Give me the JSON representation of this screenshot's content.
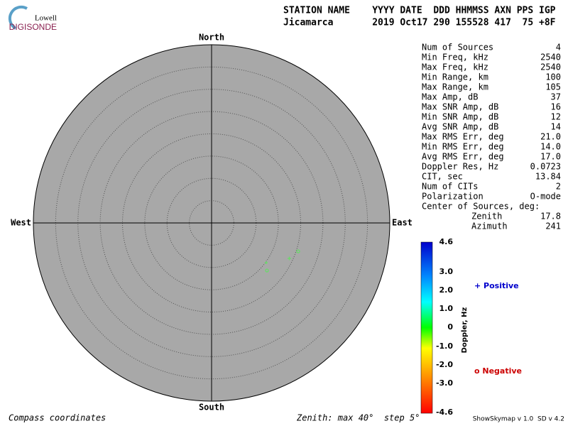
{
  "header": {
    "logo": [
      "Lowell",
      "DIGISONDE"
    ],
    "line1": "STATION NAME    YYYY DATE  DDD HHMMSS AXN PPS IGP",
    "line2": "Jicamarca       2019 Oct17 290 155528 417  75 +8F"
  },
  "compass": {
    "north": "North",
    "south": "South",
    "east": "East",
    "west": "West"
  },
  "stats": {
    "rows": [
      [
        "Num of Sources",
        "4"
      ],
      [
        "Min Freq, kHz",
        "2540"
      ],
      [
        "Max Freq, kHz",
        "2540"
      ],
      [
        "Min Range, km",
        "100"
      ],
      [
        "Max Range, km",
        "105"
      ],
      [
        "Max Amp, dB",
        "37"
      ],
      [
        "Max SNR Amp, dB",
        "16"
      ],
      [
        "Min SNR Amp, dB",
        "12"
      ],
      [
        "Avg SNR Amp, dB",
        "14"
      ],
      [
        "Max RMS Err, deg",
        "21.0"
      ],
      [
        "Min RMS Err, deg",
        "14.0"
      ],
      [
        "Avg RMS Err, deg",
        "17.0"
      ],
      [
        "Doppler Res, Hz",
        "0.0723"
      ],
      [
        "CIT, sec",
        "13.84"
      ],
      [
        "Num of CITs",
        "2"
      ],
      [
        "Polarization",
        "O-mode"
      ]
    ],
    "center_title": "Center of Sources, deg:",
    "center_rows": [
      [
        "Zenith",
        "17.8"
      ],
      [
        "Azimuth",
        "241"
      ]
    ]
  },
  "colorbar": {
    "ticks": [
      "4.6",
      "3.0",
      "2.0",
      "1.0",
      "0",
      "-1.0",
      "-2.0",
      "-3.0",
      "-4.6"
    ],
    "label": "Doppler, Hz"
  },
  "legend": {
    "positive": "+ Positive",
    "negative": "o Negative"
  },
  "footer": {
    "left": "Compass coordinates",
    "center": "Zenith: max 40°  step 5°",
    "right": "ShowSkymap v 1.0  SD v 4.2"
  }
}
